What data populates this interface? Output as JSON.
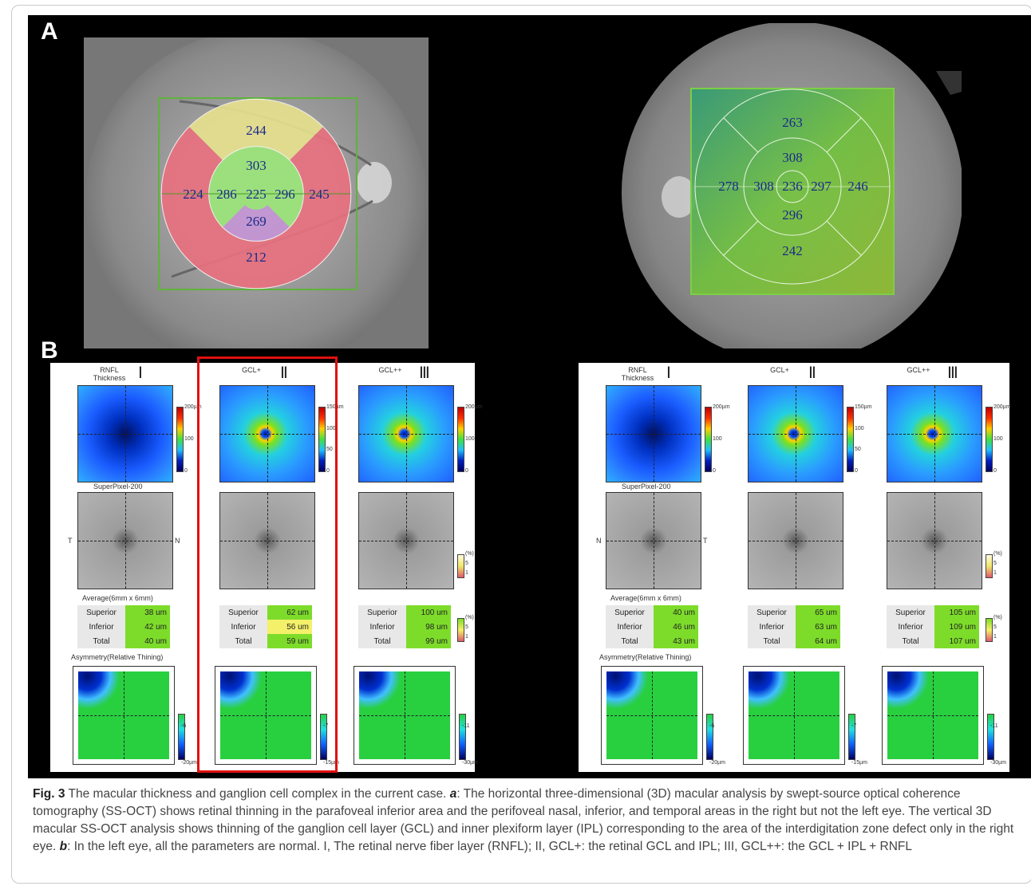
{
  "panel_labels": {
    "a": "A",
    "b": "B"
  },
  "fundus_left": {
    "outer": {
      "superior": "244",
      "temporal": "224",
      "nasal": "245",
      "inferior": "212"
    },
    "inner": {
      "superior": "303",
      "temporal": "286",
      "nasal": "296",
      "inferior": "269"
    },
    "center": "225"
  },
  "fundus_right": {
    "outer": {
      "superior": "263",
      "temporal": "278",
      "nasal": "246",
      "inferior": "242"
    },
    "inner": {
      "superior": "308",
      "temporal": "308",
      "nasal": "297",
      "inferior": "296"
    },
    "center": "236"
  },
  "b_panels": [
    {
      "side": "left",
      "columns": [
        {
          "title": "RNFL\nThickness",
          "roman": "Ⅰ",
          "scale": [
            "200µm",
            "100",
            "0"
          ],
          "super_label": "SuperPixel-200",
          "lat_left": "T",
          "lat_right": "N",
          "avg_label": "Average(6mm x 6mm)",
          "rows": [
            {
              "label": "Superior",
              "value": "38 um"
            },
            {
              "label": "Inferior",
              "value": "42 um"
            },
            {
              "label": "Total",
              "value": "40 um"
            }
          ],
          "asym_label": "Asymmetry(Relative Thining)",
          "asym_scale": [
            "-6",
            "-20µm"
          ]
        },
        {
          "title": "GCL+",
          "roman": "Ⅱ",
          "scale": [
            "150µm",
            "100",
            "50",
            "0"
          ],
          "rows": [
            {
              "label": "Superior",
              "value": "62 um"
            },
            {
              "label": "Inferior",
              "value": "56 um",
              "flag": "yellow"
            },
            {
              "label": "Total",
              "value": "59 um"
            }
          ],
          "asym_scale": [
            "-7",
            "-15µm"
          ]
        },
        {
          "title": "GCL++",
          "roman": "Ⅲ",
          "scale": [
            "200µm",
            "100",
            "0"
          ],
          "pct_scale": [
            "(%)",
            "5",
            "1"
          ],
          "rows": [
            {
              "label": "Superior",
              "value": "100 um"
            },
            {
              "label": "Inferior",
              "value": "98 um"
            },
            {
              "label": "Total",
              "value": "99 um"
            }
          ],
          "table_scale": [
            "(%)",
            "5",
            "1"
          ],
          "asym_scale": [
            "-11",
            "-30µm"
          ]
        }
      ]
    },
    {
      "side": "right",
      "columns": [
        {
          "title": "RNFL\nThickness",
          "roman": "Ⅰ",
          "scale": [
            "200µm",
            "100",
            "0"
          ],
          "super_label": "SuperPixel-200",
          "lat_left": "N",
          "lat_right": "T",
          "avg_label": "Average(6mm x 6mm)",
          "rows": [
            {
              "label": "Superior",
              "value": "40 um"
            },
            {
              "label": "Inferior",
              "value": "46 um"
            },
            {
              "label": "Total",
              "value": "43 um"
            }
          ],
          "asym_label": "Asymmetry(Relative Thining)",
          "asym_scale": [
            "-6",
            "-20µm"
          ]
        },
        {
          "title": "GCL+",
          "roman": "Ⅱ",
          "scale": [
            "150µm",
            "100",
            "50",
            "0"
          ],
          "rows": [
            {
              "label": "Superior",
              "value": "65 um"
            },
            {
              "label": "Inferior",
              "value": "63 um"
            },
            {
              "label": "Total",
              "value": "64 um"
            }
          ],
          "asym_scale": [
            "-7",
            "-15µm"
          ]
        },
        {
          "title": "GCL++",
          "roman": "Ⅲ",
          "scale": [
            "200µm",
            "100",
            "0"
          ],
          "pct_scale": [
            "(%)",
            "5",
            "1"
          ],
          "rows": [
            {
              "label": "Superior",
              "value": "105 um"
            },
            {
              "label": "Inferior",
              "value": "109 um"
            },
            {
              "label": "Total",
              "value": "107 um"
            }
          ],
          "table_scale": [
            "(%)",
            "5",
            "1"
          ],
          "asym_scale": [
            "-11",
            "-30µm"
          ]
        }
      ]
    }
  ],
  "caption": {
    "fig_label": "Fig. 3",
    "intro": " The macular thickness and ganglion cell complex in the current case. ",
    "a_label": "a",
    "a_text": ": The horizontal three-dimensional (3D) macular analysis by swept-source optical coherence tomography (SS-OCT) shows retinal thinning in the parafoveal inferior area and the perifoveal nasal, inferior, and temporal areas in the right but not the left eye. The vertical 3D macular SS-OCT analysis shows thinning of the ganglion cell layer (GCL) and inner plexiform layer (IPL) corresponding to the area of the interdigitation zone defect only in the right eye. ",
    "b_label": "b",
    "b_text": ": In the left eye, all the parameters are normal. I, The retinal nerve fiber layer (RNFL); II, GCL+: the retinal GCL and IPL; III, GCL++: the GCL + IPL + RNFL"
  },
  "colors": {
    "normal": "#7ddc2a",
    "borderline": "#f5f06a",
    "abnormal": "#e0727a",
    "highlight": "#e01010"
  }
}
